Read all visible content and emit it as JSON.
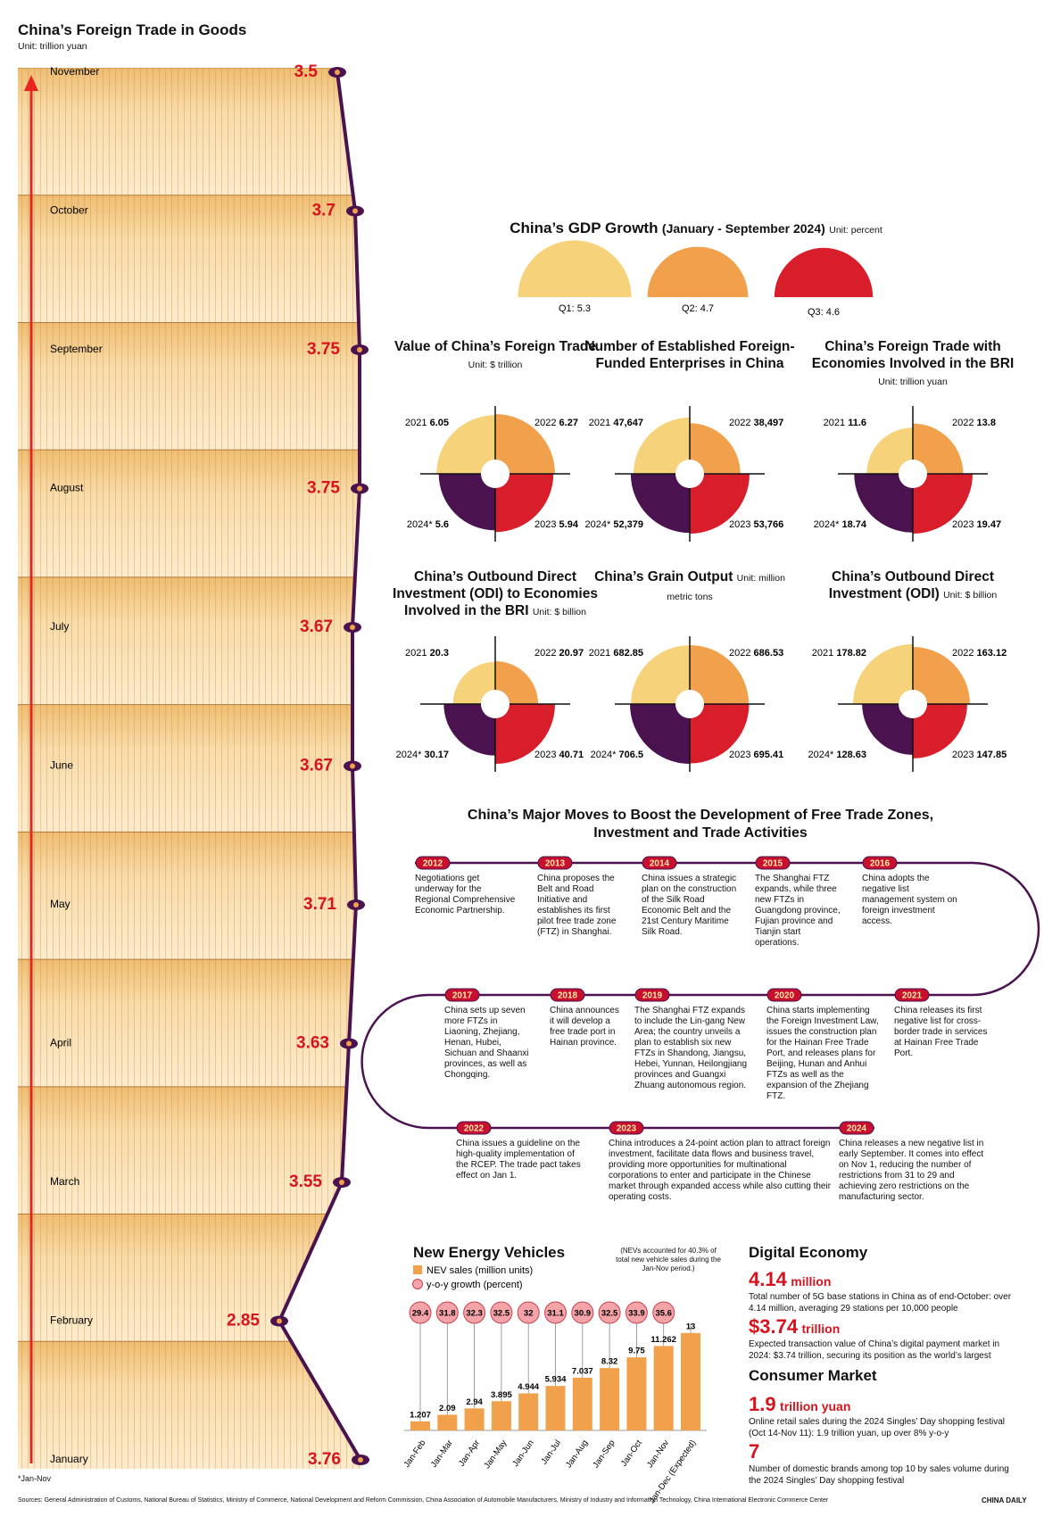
{
  "chart_data": [
    {
      "type": "line",
      "title": "China’s Foreign Trade in Goods",
      "subtitle": "Unit: trillion yuan",
      "categories": [
        "January",
        "February",
        "March",
        "April",
        "May",
        "June",
        "July",
        "August",
        "September",
        "October",
        "November"
      ],
      "values": [
        3.76,
        2.85,
        3.55,
        3.63,
        3.71,
        3.67,
        3.67,
        3.75,
        3.75,
        3.7,
        3.5
      ],
      "color": "#4a1350"
    },
    {
      "type": "semicircle",
      "title": "China’s GDP Growth",
      "title_note": "(January - September 2024)",
      "subtitle": "Unit: percent",
      "categories": [
        "Q1:",
        "Q2:",
        "Q3:"
      ],
      "values": [
        5.3,
        4.7,
        4.6
      ],
      "colors": [
        "#f6d27a",
        "#f1a14c",
        "#d81e2a"
      ]
    },
    {
      "type": "pie",
      "title": "Value of China’s Foreign Trade",
      "subtitle": "Unit: $ trillion",
      "categories": [
        "2021",
        "2022",
        "2023",
        "2024*"
      ],
      "values": [
        6.05,
        6.27,
        5.94,
        5.6
      ],
      "colors": [
        "#f6d27a",
        "#f1a14c",
        "#d81e2a",
        "#4a1350"
      ]
    },
    {
      "type": "pie",
      "title": "Number of Established Foreign-Funded Enterprises in China",
      "categories": [
        "2021",
        "2022",
        "2023",
        "2024*"
      ],
      "values": [
        47647,
        38497,
        53766,
        52379
      ],
      "value_labels": [
        "47,647",
        "38,497",
        "53,766",
        "52,379"
      ],
      "colors": [
        "#f6d27a",
        "#f1a14c",
        "#d81e2a",
        "#4a1350"
      ]
    },
    {
      "type": "pie",
      "title": "China’s Foreign Trade with Economies Involved in the BRI",
      "subtitle": "Unit: trillion yuan",
      "categories": [
        "2021",
        "2022",
        "2023",
        "2024*"
      ],
      "values": [
        11.6,
        13.8,
        19.47,
        18.74
      ],
      "colors": [
        "#f6d27a",
        "#f1a14c",
        "#d81e2a",
        "#4a1350"
      ]
    },
    {
      "type": "pie",
      "title": "China’s Outbound Direct Investment (ODI) to Economies Involved in the BRI",
      "subtitle": "Unit: $ billion",
      "categories": [
        "2021",
        "2022",
        "2023",
        "2024*"
      ],
      "values": [
        20.3,
        20.97,
        40.71,
        30.17
      ],
      "colors": [
        "#f6d27a",
        "#f1a14c",
        "#d81e2a",
        "#4a1350"
      ]
    },
    {
      "type": "pie",
      "title": "China’s Grain Output",
      "subtitle": "Unit: million metric tons",
      "categories": [
        "2021",
        "2022",
        "2023",
        "2024*"
      ],
      "values": [
        682.85,
        686.53,
        695.41,
        706.5
      ],
      "colors": [
        "#f6d27a",
        "#f1a14c",
        "#d81e2a",
        "#4a1350"
      ]
    },
    {
      "type": "pie",
      "title": "China’s Outbound Direct Investment (ODI)",
      "subtitle": "Unit: $ billion",
      "categories": [
        "2021",
        "2022",
        "2023",
        "2024*"
      ],
      "values": [
        178.82,
        163.12,
        147.85,
        128.63
      ],
      "colors": [
        "#f6d27a",
        "#f1a14c",
        "#d81e2a",
        "#4a1350"
      ]
    },
    {
      "type": "bar",
      "title": "New Energy Vehicles",
      "annotation": "(NEVs accounted for 40.3% of total new vehicle sales during the Jan-Nov period.)",
      "categories": [
        "Jan-Feb",
        "Jan-Mar",
        "Jan-Apr",
        "Jan-May",
        "Jan-Jun",
        "Jan-Jul",
        "Jan-Aug",
        "Jan-Sep",
        "Jan-Oct",
        "Jan-Nov",
        "Jan-Dec (Expected)"
      ],
      "series": [
        {
          "name": "NEV sales (million units)",
          "color": "#f1a14c",
          "values": [
            1.207,
            2.09,
            2.94,
            3.895,
            4.944,
            5.934,
            7.037,
            8.32,
            9.75,
            11.262,
            13
          ]
        },
        {
          "name": "y-o-y growth (percent)",
          "color": "#f4a3a8",
          "values": [
            29.4,
            31.8,
            32.3,
            32.5,
            32,
            31.1,
            30.9,
            32.5,
            33.9,
            35.6,
            null
          ]
        }
      ]
    }
  ],
  "footnote": "*Jan-Nov",
  "timeline": {
    "title": "China’s Major Moves to Boost the Development of Free Trade Zones, Investment and Trade Activities",
    "events": [
      {
        "year": "2012",
        "text": "Negotiations get underway for the Regional Comprehensive Economic Partnership."
      },
      {
        "year": "2013",
        "text": "China proposes the Belt and Road Initiative and establishes its first pilot free trade zone (FTZ) in Shanghai."
      },
      {
        "year": "2014",
        "text": "China issues a strategic plan on the construction of the Silk Road Economic Belt and the 21st Century Maritime Silk Road."
      },
      {
        "year": "2015",
        "text": "The Shanghai FTZ expands, while three new FTZs in Guangdong province, Fujian province and Tianjin start operations."
      },
      {
        "year": "2016",
        "text": "China adopts the negative list management system on foreign investment access."
      },
      {
        "year": "2017",
        "text": "China sets up seven more FTZs in Liaoning, Zhejiang, Henan, Hubei, Sichuan and Shaanxi provinces, as well as Chongqing."
      },
      {
        "year": "2018",
        "text": "China announces it will develop a free trade port in Hainan province."
      },
      {
        "year": "2019",
        "text": "The Shanghai FTZ expands to include the Lin-gang New Area; the country unveils a plan to establish six new FTZs in Shandong, Jiangsu, Hebei, Yunnan, Heilongjiang provinces and Guangxi Zhuang autonomous region."
      },
      {
        "year": "2020",
        "text": "China starts implementing the Foreign Investment Law, issues the construction plan for the Hainan Free Trade Port, and releases plans for Beijing, Hunan and Anhui FTZs as well as the expansion of the Zhejiang FTZ."
      },
      {
        "year": "2021",
        "text": "China releases its first negative list for cross-border trade in services at Hainan Free Trade Port."
      },
      {
        "year": "2022",
        "text": "China issues a guideline on the high-quality implementation of the RCEP. The trade pact takes effect on Jan 1."
      },
      {
        "year": "2023",
        "text": "China introduces a 24-point action plan to attract foreign investment, facilitate data flows and business travel, providing more opportunities for multinational corporations to enter and participate in the Chinese market through expanded access while also cutting their operating costs."
      },
      {
        "year": "2024",
        "text": "China releases a new negative list in early September. It comes into effect on Nov 1, reducing the number of restrictions from 31 to 29 and achieving zero restrictions on the manufacturing sector."
      }
    ]
  },
  "digital_economy": {
    "title": "Digital Economy",
    "items": [
      {
        "figure": "4.14",
        "unit": "million",
        "text": "Total number of 5G base stations in China as of end-October: over 4.14 million, averaging 29 stations per 10,000 people"
      },
      {
        "figure": "$3.74",
        "unit": "trillion",
        "text": "Expected transaction value of China’s digital payment market in 2024: $3.74 trillion, securing its position as the world’s largest"
      }
    ]
  },
  "consumer_market": {
    "title": "Consumer Market",
    "items": [
      {
        "figure": "1.9",
        "unit": "trillion yuan",
        "text": "Online retail sales during the 2024 Singles’ Day shopping festival (Oct 14-Nov 11): 1.9 trillion yuan, up over 8% y-o-y"
      },
      {
        "figure": "7",
        "text": "Number of domestic brands among top 10 by sales volume during the 2024 Singles’ Day shopping festival"
      }
    ]
  },
  "sources": "Sources: General Administration of Customs, National Bureau of Statistics, Ministry of Commerce, National Development and Reform Commission, China Association of Automobile Manufacturers, Ministry of Industry and Information Technology, China International Electronic Commerce Center",
  "credit": "CHINA DAILY"
}
